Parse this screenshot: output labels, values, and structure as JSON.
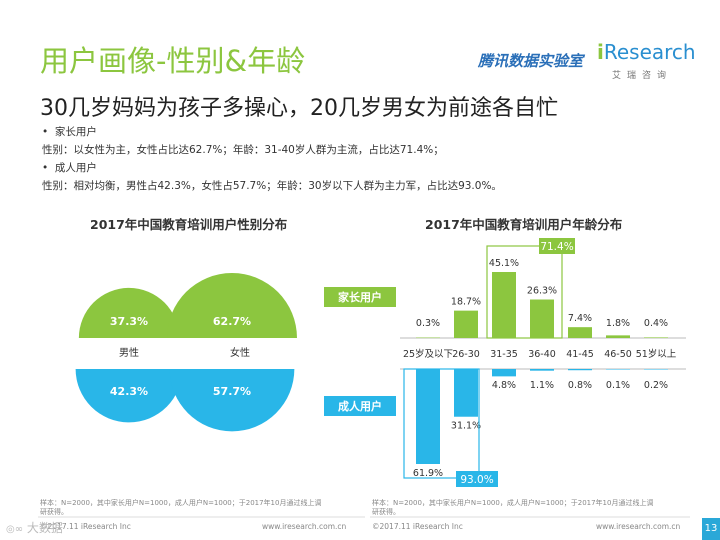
{
  "header": {
    "title": "用户画像-性别&年龄",
    "subtitle": "30几岁妈妈为孩子多操心，20几岁男女为前途各自忙",
    "brand_tencent": "腾讯数据实验室",
    "brand_ir_i": "i",
    "brand_ir_rest": "Research",
    "brand_cn": "艾瑞咨询"
  },
  "bullets": [
    {
      "mark": "•",
      "head": "家长用户",
      "text": "性别：以女性为主，女性占比达62.7%；年龄：31-40岁人群为主流，占比达71.4%；"
    },
    {
      "mark": "•",
      "head": "成人用户",
      "text": "性别：相对均衡，男性占42.3%，女性占57.7%；年龄：30岁以下人群为主力军，占比达93.0%。"
    }
  ],
  "group_labels": {
    "parent": "家长用户",
    "adult": "成人用户"
  },
  "chart_data": [
    {
      "type": "pie",
      "title": "2017年中国教育培训用户性别分布",
      "categories": [
        "男性",
        "女性"
      ],
      "series": [
        {
          "name": "家长用户",
          "values": [
            37.3,
            62.7
          ],
          "labels": [
            "37.3%",
            "62.7%"
          ]
        },
        {
          "name": "成人用户",
          "values": [
            42.3,
            57.7
          ],
          "labels": [
            "42.3%",
            "57.7%"
          ]
        }
      ]
    },
    {
      "type": "bar",
      "title": "2017年中国教育培训用户年龄分布",
      "categories": [
        "25岁及以下",
        "26-30",
        "31-35",
        "36-40",
        "41-45",
        "46-50",
        "51岁以上"
      ],
      "series": [
        {
          "name": "家长用户",
          "values": [
            0.3,
            18.7,
            45.1,
            26.3,
            7.4,
            1.8,
            0.4
          ],
          "labels": [
            "0.3%",
            "18.7%",
            "45.1%",
            "26.3%",
            "7.4%",
            "1.8%",
            "0.4%"
          ]
        },
        {
          "name": "成人用户",
          "values": [
            61.9,
            31.1,
            4.8,
            1.1,
            0.8,
            0.1,
            0.2
          ],
          "labels": [
            "61.9%",
            "31.1%",
            "4.8%",
            "1.1%",
            "0.8%",
            "0.1%",
            "0.2%"
          ]
        }
      ],
      "annotations": [
        "71.4%",
        "93.0%"
      ]
    }
  ],
  "footer": {
    "left_note_1": "样本：N=2000，其中家长用户N=1000，成人用户N=1000；于2017年10月通过线上调",
    "left_note_2": "研获得。",
    "left_copy": "©2017.11 iResearch Inc",
    "left_url": "www.iresearch.com.cn",
    "right_note_1": "样本：N=2000，其中家长用户N=1000，成人用户N=1000；于2017年10月通过线上调",
    "right_note_2": "研获得。",
    "right_copy": "©2017.11 iResearch Inc",
    "right_url": "www.iresearch.com.cn",
    "page_number": "13",
    "watermark": "大数据"
  },
  "colors": {
    "green": "#8cc63f",
    "blue": "#29b6e8",
    "title_green": "#8cc63f"
  }
}
